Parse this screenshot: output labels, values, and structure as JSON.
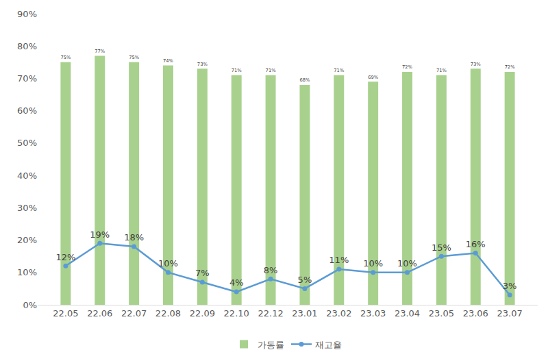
{
  "chart_data": {
    "type": "bar",
    "categories": [
      "22.05",
      "22.06",
      "22.07",
      "22.08",
      "22.09",
      "22.10",
      "22.12",
      "23.01",
      "23.02",
      "23.03",
      "23.04",
      "23.05",
      "23.06",
      "23.07"
    ],
    "series": [
      {
        "name": "가동률",
        "type": "bar",
        "color": "#a9d18e",
        "values": [
          75,
          77,
          75,
          74,
          73,
          71,
          71,
          68,
          71,
          69,
          72,
          71,
          73,
          72
        ],
        "value_labels": [
          "75%",
          "77%",
          "75%",
          "74%",
          "73%",
          "71%",
          "71%",
          "68%",
          "71%",
          "69%",
          "72%",
          "71%",
          "73%",
          "72%"
        ]
      },
      {
        "name": "재고율",
        "type": "line",
        "color": "#5b9bd5",
        "marker": "circle",
        "line_style": "solid",
        "values": [
          12,
          19,
          18,
          10,
          7,
          4,
          8,
          5,
          11,
          10,
          10,
          15,
          16,
          3
        ],
        "value_labels": [
          "12%",
          "19%",
          "18%",
          "10%",
          "7%",
          "4%",
          "8%",
          "5%",
          "11%",
          "10%",
          "10%",
          "15%",
          "16%",
          "3%"
        ]
      }
    ],
    "ylim": [
      0,
      90
    ],
    "yticks": [
      {
        "value": 0,
        "label": "0%"
      },
      {
        "value": 10,
        "label": "10%"
      },
      {
        "value": 20,
        "label": "20%"
      },
      {
        "value": 30,
        "label": "30%"
      },
      {
        "value": 40,
        "label": "40%"
      },
      {
        "value": 50,
        "label": "50%"
      },
      {
        "value": 60,
        "label": "60%"
      },
      {
        "value": 70,
        "label": "70%"
      },
      {
        "value": 80,
        "label": "80%"
      },
      {
        "value": 90,
        "label": "90%"
      }
    ],
    "grid": false,
    "legend": "bottom",
    "data_labels": true
  }
}
